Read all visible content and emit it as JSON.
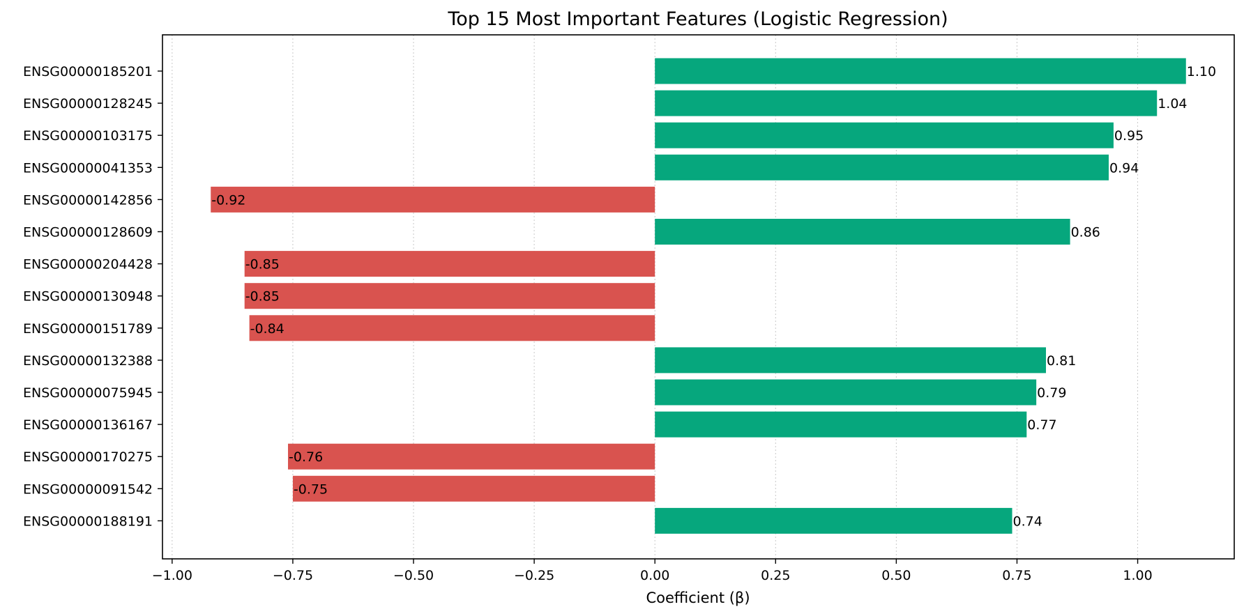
{
  "chart_data": {
    "type": "bar",
    "orientation": "horizontal",
    "title": "Top 15 Most Important Features (Logistic Regression)",
    "xlabel": "Coefficient (β)",
    "ylabel": "",
    "xlim": [
      -1.02,
      1.2
    ],
    "xticks": [
      -1.0,
      -0.75,
      -0.5,
      -0.25,
      0.0,
      0.25,
      0.5,
      0.75,
      1.0
    ],
    "xtick_labels": [
      "−1.00",
      "−0.75",
      "−0.50",
      "−0.25",
      "0.00",
      "0.25",
      "0.50",
      "0.75",
      "1.00"
    ],
    "grid": "x-dotted",
    "colors": {
      "positive": "#06a77d",
      "negative": "#d9534f"
    },
    "categories": [
      "ENSG00000185201",
      "ENSG00000128245",
      "ENSG00000103175",
      "ENSG00000041353",
      "ENSG00000142856",
      "ENSG00000128609",
      "ENSG00000204428",
      "ENSG00000130948",
      "ENSG00000151789",
      "ENSG00000132388",
      "ENSG00000075945",
      "ENSG00000136167",
      "ENSG00000170275",
      "ENSG00000091542",
      "ENSG00000188191"
    ],
    "values": [
      1.1,
      1.04,
      0.95,
      0.94,
      -0.92,
      0.86,
      -0.85,
      -0.85,
      -0.84,
      0.81,
      0.79,
      0.77,
      -0.76,
      -0.75,
      0.74
    ],
    "value_labels": [
      "1.10",
      "1.04",
      "0.95",
      "0.94",
      "-0.92",
      "0.86",
      "-0.85",
      "-0.85",
      "-0.84",
      "0.81",
      "0.79",
      "0.77",
      "-0.76",
      "-0.75",
      "0.74"
    ]
  }
}
